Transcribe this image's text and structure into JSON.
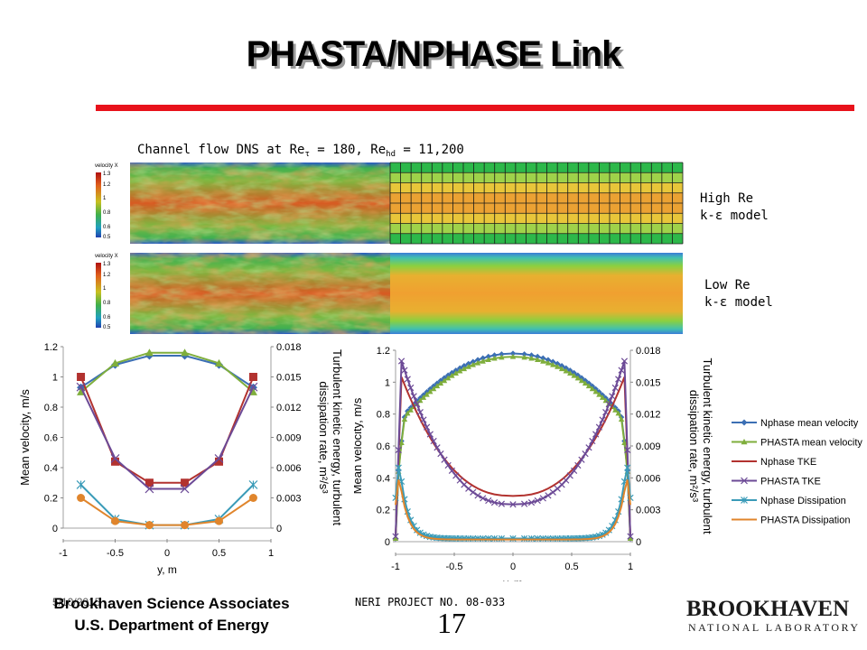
{
  "slide": {
    "title": "PHASTA/NPHASE Link",
    "caption_prefix": "Channel flow DNS at ",
    "caption_re1": "Re",
    "caption_re1_sub": "τ",
    "caption_mid": " = 180, ",
    "caption_re2": "Re",
    "caption_re2_sub": "hd",
    "caption_end": " = 11,200",
    "label_high_1": "High Re",
    "label_high_2": "k-ε model",
    "label_low_1": "Low Re",
    "label_low_2": "k-ε model",
    "colorbar_title": "velocity X",
    "colorbar_ticks": [
      "1.3",
      "1.2",
      "1",
      "0.8",
      "0.6",
      "0.5"
    ],
    "footer_org_1": "Brookhaven Science Associates",
    "footer_org_2": "U.S. Department of Energy",
    "footer_date": "5/10/2015",
    "footer_project": "NERI PROJECT NO. 08-033",
    "page_number": "17",
    "logo_main": "BROOKHAVEN",
    "logo_sub": "NATIONAL LABORATORY"
  },
  "chart_data": [
    {
      "type": "line",
      "xlabel": "y, m",
      "ylabel": "Mean velocity, m/s",
      "y2label_1": "Turbulent kinetic energy, turbulent",
      "y2label_2": "dissipation rate, m²/s³",
      "xlim": [
        -1,
        1
      ],
      "ylim": [
        0,
        1.2
      ],
      "y2lim": [
        0,
        0.018
      ],
      "xticks": [
        "-1",
        "-0.5",
        "0",
        "0.5",
        "1"
      ],
      "yticks": [
        "0",
        "0.2",
        "0.4",
        "0.6",
        "0.8",
        "1",
        "1.2"
      ],
      "y2ticks": [
        "0",
        "0.003",
        "0.006",
        "0.009",
        "0.012",
        "0.015",
        "0.018"
      ],
      "x": [
        -0.83,
        -0.5,
        -0.17,
        0.17,
        0.5,
        0.83
      ],
      "series": [
        {
          "name": "Nphase mean velocity",
          "color": "#3c6fb4",
          "marker": "diamond",
          "axis": "left",
          "values": [
            0.93,
            1.08,
            1.14,
            1.14,
            1.08,
            0.93
          ]
        },
        {
          "name": "PHASTA mean velocity",
          "color": "#7fae3c",
          "marker": "triangle",
          "axis": "left",
          "values": [
            0.9,
            1.09,
            1.16,
            1.16,
            1.09,
            0.9
          ]
        },
        {
          "name": "Nphase TKE",
          "color": "#b2322f",
          "marker": "square",
          "axis": "right",
          "values": [
            0.015,
            0.0066,
            0.0045,
            0.0045,
            0.0066,
            0.015
          ]
        },
        {
          "name": "PHASTA TKE",
          "color": "#6c4a96",
          "marker": "x",
          "axis": "right",
          "values": [
            0.014,
            0.0069,
            0.0039,
            0.0039,
            0.0069,
            0.014
          ]
        },
        {
          "name": "Nphase Dissipation",
          "color": "#3a9bb8",
          "marker": "star",
          "axis": "right",
          "values": [
            0.0043,
            0.0009,
            0.0003,
            0.0003,
            0.0009,
            0.0043
          ]
        },
        {
          "name": "PHASTA Dissipation",
          "color": "#e0852c",
          "marker": "circle",
          "axis": "right",
          "values": [
            0.003,
            0.0007,
            0.0003,
            0.0003,
            0.0007,
            0.003
          ]
        }
      ]
    },
    {
      "type": "line",
      "xlabel": "y, m",
      "ylabel": "Mean velocity, m/s",
      "y2label_1": "Turbulent kinetic energy, turbulent",
      "y2label_2": "dissipation rate, m²/s³",
      "xlim": [
        -1,
        1
      ],
      "ylim": [
        0,
        1.2
      ],
      "y2lim": [
        0,
        0.018
      ],
      "xticks": [
        "-1",
        "-0.5",
        "0",
        "0.5",
        "1"
      ],
      "yticks": [
        "0",
        "0.2",
        "0.4",
        "0.6",
        "0.8",
        "1",
        "1.2"
      ],
      "y2ticks": [
        "0",
        "0.003",
        "0.006",
        "0.009",
        "0.012",
        "0.015",
        "0.018"
      ],
      "legend_position": "right",
      "series": [
        {
          "name": "Nphase mean velocity",
          "color": "#3c6fb4",
          "marker": "diamond",
          "axis": "left",
          "profile": "velocity",
          "peak": 1.18
        },
        {
          "name": "PHASTA mean velocity",
          "color": "#7fae3c",
          "marker": "triangle",
          "axis": "left",
          "profile": "velocity",
          "peak": 1.16
        },
        {
          "name": "Nphase TKE",
          "color": "#b2322f",
          "marker": "none",
          "axis": "right",
          "profile": "tke",
          "peak": 0.0155,
          "center": 0.0043
        },
        {
          "name": "PHASTA TKE",
          "color": "#6c4a96",
          "marker": "x",
          "axis": "right",
          "profile": "tke",
          "peak": 0.017,
          "center": 0.0035
        },
        {
          "name": "Nphase Dissipation",
          "color": "#3a9bb8",
          "marker": "star",
          "axis": "right",
          "profile": "diss",
          "peak": 0.0075,
          "center": 0.0003
        },
        {
          "name": "PHASTA Dissipation",
          "color": "#e0852c",
          "marker": "none",
          "axis": "right",
          "profile": "diss",
          "peak": 0.0063,
          "center": 0.0002
        }
      ]
    }
  ]
}
